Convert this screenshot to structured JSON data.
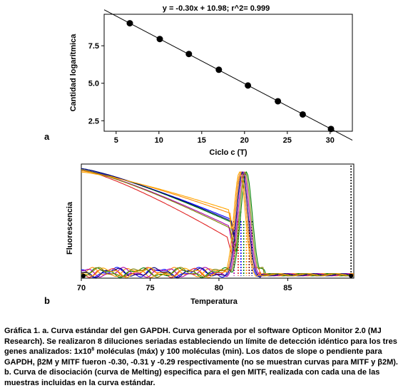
{
  "chart_data": [
    {
      "type": "scatter",
      "panel_label": "a",
      "title": "y = -0.30x + 10.98; r^2= 0.999",
      "xlabel": "Ciclo c (T)",
      "ylabel": "Cantidad logarítmica",
      "xlim": [
        3.6,
        32.6
      ],
      "ylim": [
        1.8,
        9.6
      ],
      "xticks": [
        "5",
        "10",
        "15",
        "20",
        "25",
        "30"
      ],
      "yticks": [
        "2.5",
        "5.0",
        "7.5"
      ],
      "grid": false,
      "marker_color": "#000000",
      "points": [
        {
          "x": 6.6,
          "y": 9.0
        },
        {
          "x": 10.1,
          "y": 7.95
        },
        {
          "x": 13.5,
          "y": 6.95
        },
        {
          "x": 17.0,
          "y": 5.9
        },
        {
          "x": 20.4,
          "y": 4.85
        },
        {
          "x": 23.9,
          "y": 3.8
        },
        {
          "x": 26.8,
          "y": 2.92
        },
        {
          "x": 30.1,
          "y": 1.95
        }
      ],
      "fit": {
        "slope": -0.3,
        "intercept": 10.98,
        "x_range": [
          3.6,
          32.6
        ]
      }
    },
    {
      "type": "line",
      "panel_label": "b",
      "xlabel": "Temperatura",
      "ylabel": "Fluorescencia",
      "xlim": [
        70,
        89.8
      ],
      "ylim": [
        0,
        1
      ],
      "xticks": [
        "70",
        "75",
        "80",
        "85"
      ],
      "grid": false,
      "series": [
        {
          "color": "#0000ff",
          "peak_x": 81.6,
          "start_y": 0.95,
          "mid_y": 0.52,
          "mid_x": 80.8
        },
        {
          "color": "#e02020",
          "peak_x": 81.7,
          "start_y": 0.95,
          "mid_y": 0.36,
          "mid_x": 80.6
        },
        {
          "color": "#008000",
          "peak_x": 82.0,
          "start_y": 0.96,
          "mid_y": 0.49,
          "mid_x": 80.9
        },
        {
          "color": "#ff8c00",
          "peak_x": 81.6,
          "start_y": 0.94,
          "mid_y": 0.57,
          "mid_x": 80.8
        },
        {
          "color": "#aa00aa",
          "peak_x": 81.8,
          "start_y": 0.95,
          "mid_y": 0.46,
          "mid_x": 80.7
        },
        {
          "color": "#000080",
          "peak_x": 81.7,
          "start_y": 0.96,
          "mid_y": 0.5,
          "mid_x": 80.9
        },
        {
          "color": "#ffa500",
          "peak_x": 81.5,
          "start_y": 0.93,
          "mid_y": 0.6,
          "mid_x": 80.7
        },
        {
          "color": "#808000",
          "peak_x": 81.9,
          "start_y": 0.95,
          "mid_y": 0.44,
          "mid_x": 80.8
        }
      ],
      "peak_markers_x": [
        81.1,
        81.4,
        81.6,
        81.8,
        82.0,
        82.2,
        82.4
      ],
      "right_marker_x": 89.6
    }
  ],
  "caption": {
    "l1": "Gráfica 1. a. Curva estándar del gen GAPDH. Curva generada por el software Opticon Monitor 2.0 (MJ",
    "l2": "Research). Se realizaron 8 diluciones seriadas estableciendo un límite de detección idéntico para los tres",
    "l3a": "genes analizados: 1x10",
    "l3sup": "8",
    "l3b": " moléculas (máx) y 100 moléculas (min). Los datos de slope o pendiente para",
    "l4": "GAPDH, β2M y MITF fueron -0.30, -0.31 y -0.29 respectivamente (no se muestran curvas para MITF y β2M).",
    "l5": "b. Curva de disociación (curva de Melting) especifica para el gen MITF, realizada con cada una de las",
    "l6": "muestras incluidas en la curva estándar."
  }
}
